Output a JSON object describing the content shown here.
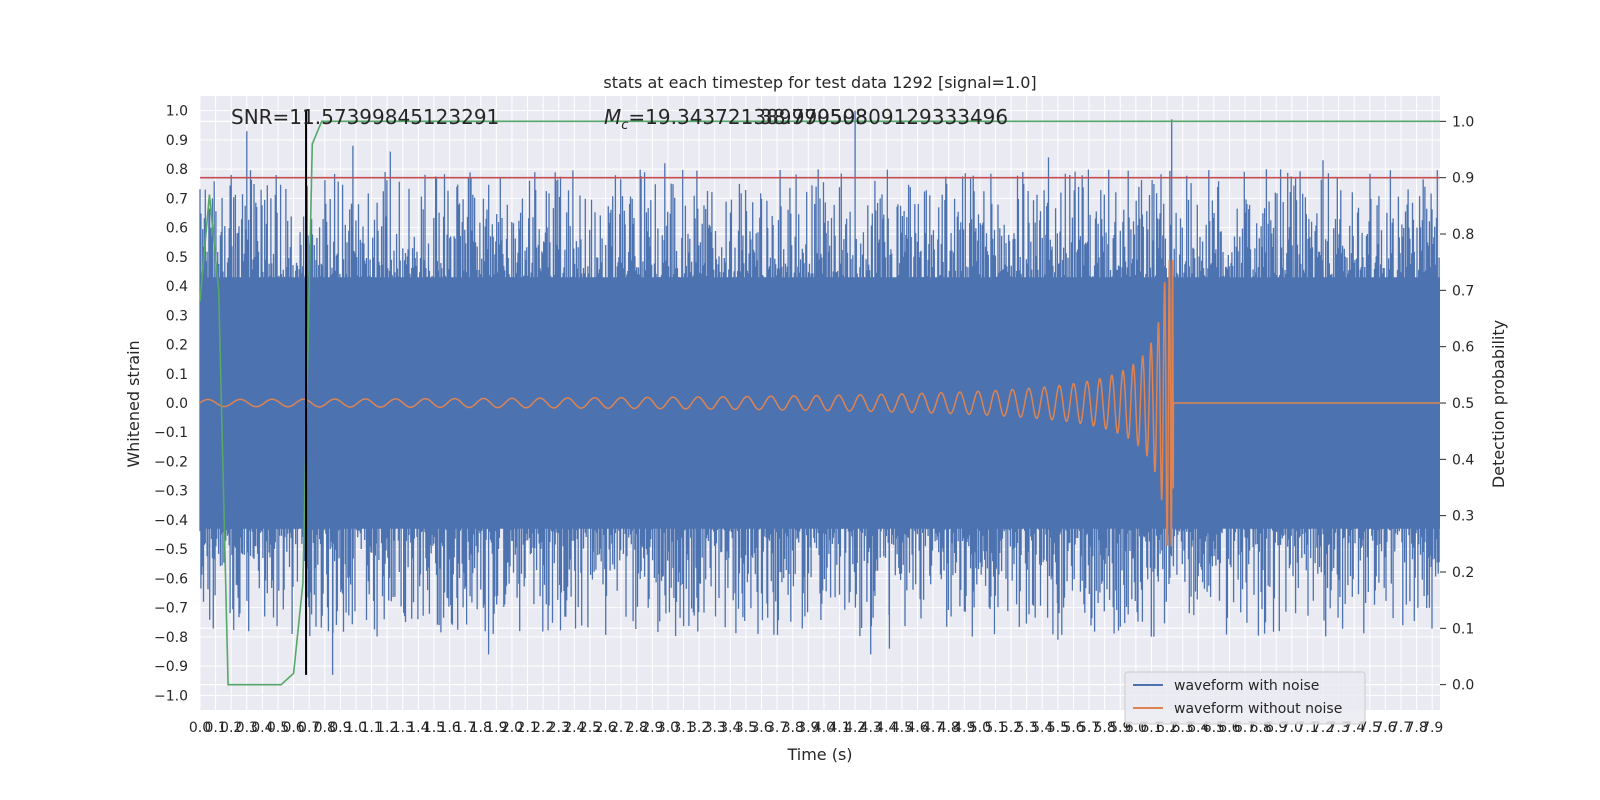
{
  "chart_data": {
    "type": "line",
    "title": "stats at each timestep for test data 1292 [signal=1.0]",
    "xlabel": "Time (s)",
    "ylabel": "Whitened strain",
    "y2label": "Detection probability",
    "xlim": [
      0.0,
      7.95
    ],
    "ylim": [
      -1.05,
      1.05
    ],
    "y2lim": [
      -0.045,
      1.045
    ],
    "xticks": [
      "0.0",
      "0.1",
      "0.2",
      "0.3",
      "0.4",
      "0.5",
      "0.6",
      "0.7",
      "0.8",
      "0.9",
      "1.0",
      "1.1",
      "1.2",
      "1.3",
      "1.4",
      "1.5",
      "1.6",
      "1.7",
      "1.8",
      "1.9",
      "2.0",
      "2.1",
      "2.2",
      "2.3",
      "2.4",
      "2.5",
      "2.6",
      "2.7",
      "2.8",
      "2.9",
      "3.0",
      "3.1",
      "3.2",
      "3.3",
      "3.4",
      "3.5",
      "3.6",
      "3.7",
      "3.8",
      "3.9",
      "4.0",
      "4.1",
      "4.2",
      "4.3",
      "4.4",
      "4.5",
      "4.6",
      "4.7",
      "4.8",
      "4.9",
      "5.0",
      "5.1",
      "5.2",
      "5.3",
      "5.4",
      "5.5",
      "5.6",
      "5.7",
      "5.8",
      "5.9",
      "6.0",
      "6.1",
      "6.2",
      "6.3",
      "6.4",
      "6.5",
      "6.6",
      "6.7",
      "6.8",
      "6.9",
      "7.0",
      "7.1",
      "7.2",
      "7.3",
      "7.4",
      "7.5",
      "7.6",
      "7.7",
      "7.8",
      "7.9"
    ],
    "yticks": [
      "1.0",
      "0.9",
      "0.8",
      "0.7",
      "0.6",
      "0.5",
      "0.4",
      "0.3",
      "0.2",
      "0.1",
      "0.0",
      "−0.1",
      "−0.2",
      "−0.3",
      "−0.4",
      "−0.5",
      "−0.6",
      "−0.7",
      "−0.8",
      "−0.9",
      "−1.0"
    ],
    "y2ticks": [
      "1.0",
      "0.9",
      "0.8",
      "0.7",
      "0.6",
      "0.5",
      "0.4",
      "0.3",
      "0.2",
      "0.1",
      "0.0"
    ],
    "annotations": {
      "snr": "SNR=11.57399845123291",
      "mc_prefix": "M",
      "mc_sub": "c",
      "mc_value": "=19.343721389770508",
      "mc_overlap": "38.99959309129333496"
    },
    "series": [
      {
        "name": "waveform with noise",
        "color": "#4c72b0",
        "axis": "left",
        "kind": "noise",
        "band_upper": 0.43,
        "band_lower": -0.43,
        "spikes": [
          [
            0.07,
            0.6
          ],
          [
            0.2,
            0.78
          ],
          [
            0.3,
            0.93
          ],
          [
            0.8,
            0.4
          ],
          [
            0.98,
            0.88
          ],
          [
            1.22,
            0.86
          ],
          [
            2.98,
            0.82
          ],
          [
            3.95,
            0.74
          ],
          [
            4.2,
            1.0
          ],
          [
            5.44,
            0.84
          ],
          [
            6.23,
            0.97
          ],
          [
            7.2,
            0.83
          ],
          [
            0.85,
            -0.93
          ],
          [
            1.85,
            -0.86
          ],
          [
            4.3,
            -0.86
          ],
          [
            4.42,
            -0.84
          ],
          [
            5.5,
            -0.81
          ],
          [
            6.92,
            -0.78
          ]
        ]
      },
      {
        "name": "waveform without noise",
        "color": "#dd8452",
        "axis": "left",
        "kind": "chirp",
        "merger_time": 6.24,
        "peak_amplitude": 0.49,
        "early_amplitude": 0.012
      },
      {
        "name": "",
        "color": "#55a868",
        "axis": "right",
        "kind": "probability",
        "x": [
          0.0,
          0.06,
          0.12,
          0.18,
          0.24,
          0.3,
          0.38,
          0.46,
          0.52,
          0.6,
          0.66,
          0.72,
          0.78,
          7.95
        ],
        "y": [
          0.68,
          0.87,
          0.7,
          0.0,
          0.0,
          0.0,
          0.0,
          0.0,
          0.0,
          0.02,
          0.18,
          0.96,
          1.0,
          1.0
        ]
      },
      {
        "name": "",
        "color": "#c44e52",
        "axis": "right",
        "kind": "threshold",
        "value": 0.9
      },
      {
        "name": "",
        "color": "#000000",
        "axis": "left",
        "kind": "vline",
        "x": 0.68,
        "y_range": [
          -0.93,
          1.0
        ]
      }
    ],
    "legend": {
      "placement": "lower-right",
      "entries": [
        {
          "label": "waveform with noise",
          "color": "#4c72b0"
        },
        {
          "label": "waveform without noise",
          "color": "#dd8452"
        }
      ]
    },
    "grid": true,
    "colors": {
      "background": "#eaeaf2",
      "grid": "#ffffff",
      "text": "#262626"
    }
  }
}
